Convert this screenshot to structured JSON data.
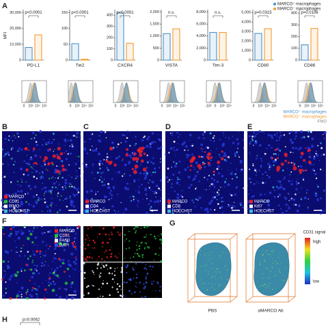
{
  "chart_data": [
    {
      "type": "bar",
      "ylabel": "MFI",
      "xlabel": "PD-L1",
      "annotation": "p<0.0001",
      "series": [
        {
          "name": "MARCO⁺ macrophages",
          "color": "#4a90c8",
          "values": [
            8000
          ]
        },
        {
          "name": "MARCO⁻ macrophages",
          "color": "#f39a2e",
          "values": [
            16000
          ]
        }
      ],
      "ylim": [
        0,
        32000
      ],
      "yticks": [
        0,
        {
          "value": 10000,
          "label": "10,000"
        },
        {
          "value": 20000,
          "label": "20,000"
        },
        {
          "value": 30000,
          "label": "30,000"
        }
      ],
      "hist_xticks": [
        "0",
        "10³",
        "10⁴",
        "10⁵"
      ]
    },
    {
      "type": "bar",
      "xlabel": "Tie2",
      "annotation": "p<0.0001",
      "series": [
        {
          "name": "MARCO⁺ macrophages",
          "color": "#4a90c8",
          "values": [
            52
          ]
        },
        {
          "name": "MARCO⁻ macrophages",
          "color": "#f39a2e",
          "values": [
            3
          ]
        }
      ],
      "ylim": [
        0,
        160
      ],
      "yticks": [
        0,
        50,
        100,
        150
      ],
      "hist_xticks": [
        "0",
        "10³",
        "10⁴",
        "10⁵"
      ]
    },
    {
      "type": "bar",
      "xlabel": "CXCR4",
      "annotation": "p<0.0001",
      "series": [
        {
          "name": "MARCO⁺ macrophages",
          "color": "#4a90c8",
          "values": [
            420
          ]
        },
        {
          "name": "MARCO⁻ macrophages",
          "color": "#f39a2e",
          "values": [
            150
          ]
        }
      ],
      "ylim": [
        0,
        450
      ],
      "yticks": [
        0,
        100,
        200,
        300,
        400
      ],
      "hist_xticks": [
        "0",
        "10³",
        "10⁴",
        "10⁵"
      ]
    },
    {
      "type": "bar",
      "xlabel": "VISTA",
      "annotation": "n.s.",
      "series": [
        {
          "name": "MARCO⁺ macrophages",
          "color": "#4a90c8",
          "values": [
            1100
          ]
        },
        {
          "name": "MARCO⁻ macrophages",
          "color": "#f39a2e",
          "values": [
            1300
          ]
        }
      ],
      "ylim": [
        0,
        2100
      ],
      "yticks": [
        0,
        500,
        {
          "value": 1000,
          "label": "1,000"
        },
        {
          "value": 1500,
          "label": "1,500"
        },
        {
          "value": 2000,
          "label": "2,000"
        }
      ],
      "hist_xticks": [
        "0",
        "10³",
        "10⁴",
        "10⁵"
      ]
    },
    {
      "type": "bar",
      "xlabel": "Tim-3",
      "annotation": "n.s.",
      "series": [
        {
          "name": "MARCO⁺ macrophages",
          "color": "#4a90c8",
          "values": [
            4600
          ]
        },
        {
          "name": "MARCO⁻ macrophages",
          "color": "#f39a2e",
          "values": [
            4600
          ]
        }
      ],
      "ylim": [
        0,
        8400
      ],
      "yticks": [
        0,
        {
          "value": 2000,
          "label": "2,000"
        },
        {
          "value": 4000,
          "label": "4,000"
        },
        {
          "value": 6000,
          "label": "6,000"
        },
        {
          "value": 8000,
          "label": "8,000"
        }
      ],
      "hist_xticks": [
        "-10³",
        "0",
        "10³",
        "10⁴"
      ]
    },
    {
      "type": "bar",
      "xlabel": "CD80",
      "annotation": "p=0.0315",
      "series": [
        {
          "name": "MARCO⁺ macrophages",
          "color": "#4a90c8",
          "values": [
            2800
          ]
        },
        {
          "name": "MARCO⁻ macrophages",
          "color": "#f39a2e",
          "values": [
            3300
          ]
        }
      ],
      "ylim": [
        0,
        5300
      ],
      "yticks": [
        0,
        {
          "value": 1000,
          "label": "1,000"
        },
        {
          "value": 2000,
          "label": "2,000"
        },
        {
          "value": 3000,
          "label": "3,000"
        },
        {
          "value": 4000,
          "label": "4,000"
        },
        {
          "value": 5000,
          "label": "5,000"
        }
      ],
      "hist_xticks": [
        "0",
        "10³",
        "10⁴",
        "10⁵"
      ]
    },
    {
      "type": "bar",
      "xlabel": "CD86",
      "annotation": "p=0.0106",
      "series": [
        {
          "name": "MARCO⁺ macrophages",
          "color": "#4a90c8",
          "values": [
            130
          ]
        },
        {
          "name": "MARCO⁻ macrophages",
          "color": "#f39a2e",
          "values": [
            270
          ]
        }
      ],
      "ylim": [
        0,
        430
      ],
      "yticks": [
        0,
        100,
        200,
        300,
        400
      ],
      "hist_xticks": [
        "0",
        "10³",
        "10⁴",
        "10⁵"
      ]
    }
  ],
  "panel_a": {
    "letter": "A",
    "fmo_label": "FMO",
    "fmo_color": "#aaaaaa"
  },
  "images": [
    {
      "letter": "B",
      "labels": [
        {
          "text": "MARCO",
          "color": "#e8202a"
        },
        {
          "text": "CD31",
          "color": "#22c040"
        },
        {
          "text": "PIMO",
          "color": "#ffffff"
        },
        {
          "text": "HOECHST",
          "color": "#3cc0e0"
        }
      ]
    },
    {
      "letter": "C",
      "labels": [
        {
          "text": "MARCO",
          "color": "#e8202a"
        },
        {
          "text": "CD4",
          "color": "#ffffff"
        },
        {
          "text": "HOECHST",
          "color": "#3cc0e0"
        }
      ]
    },
    {
      "letter": "D",
      "labels": [
        {
          "text": "MARCO",
          "color": "#e8202a"
        },
        {
          "text": "CD8",
          "color": "#ffffff"
        },
        {
          "text": "HOECHST",
          "color": "#3cc0e0"
        }
      ]
    },
    {
      "letter": "E",
      "labels": [
        {
          "text": "MARCO",
          "color": "#e8202a"
        },
        {
          "text": "Ki67",
          "color": "#ffffff"
        },
        {
          "text": "HOECHST",
          "color": "#3cc0e0"
        }
      ]
    }
  ],
  "panel_f": {
    "letter": "F",
    "labels": [
      {
        "text": "MARCO",
        "color": "#e8202a"
      },
      {
        "text": "CD31",
        "color": "#22c040"
      },
      {
        "text": "F4/80",
        "color": "#ffffff"
      },
      {
        "text": "DAPI",
        "color": "#3050e0"
      }
    ]
  },
  "panel_g": {
    "letter": "G",
    "conditions": [
      "PBS",
      "αMARCO Ab"
    ],
    "colorbar_title": "CD31 signal",
    "high": "high",
    "low": "low"
  },
  "panel_h": {
    "letter": "H",
    "annotation": "p=0.0062"
  }
}
